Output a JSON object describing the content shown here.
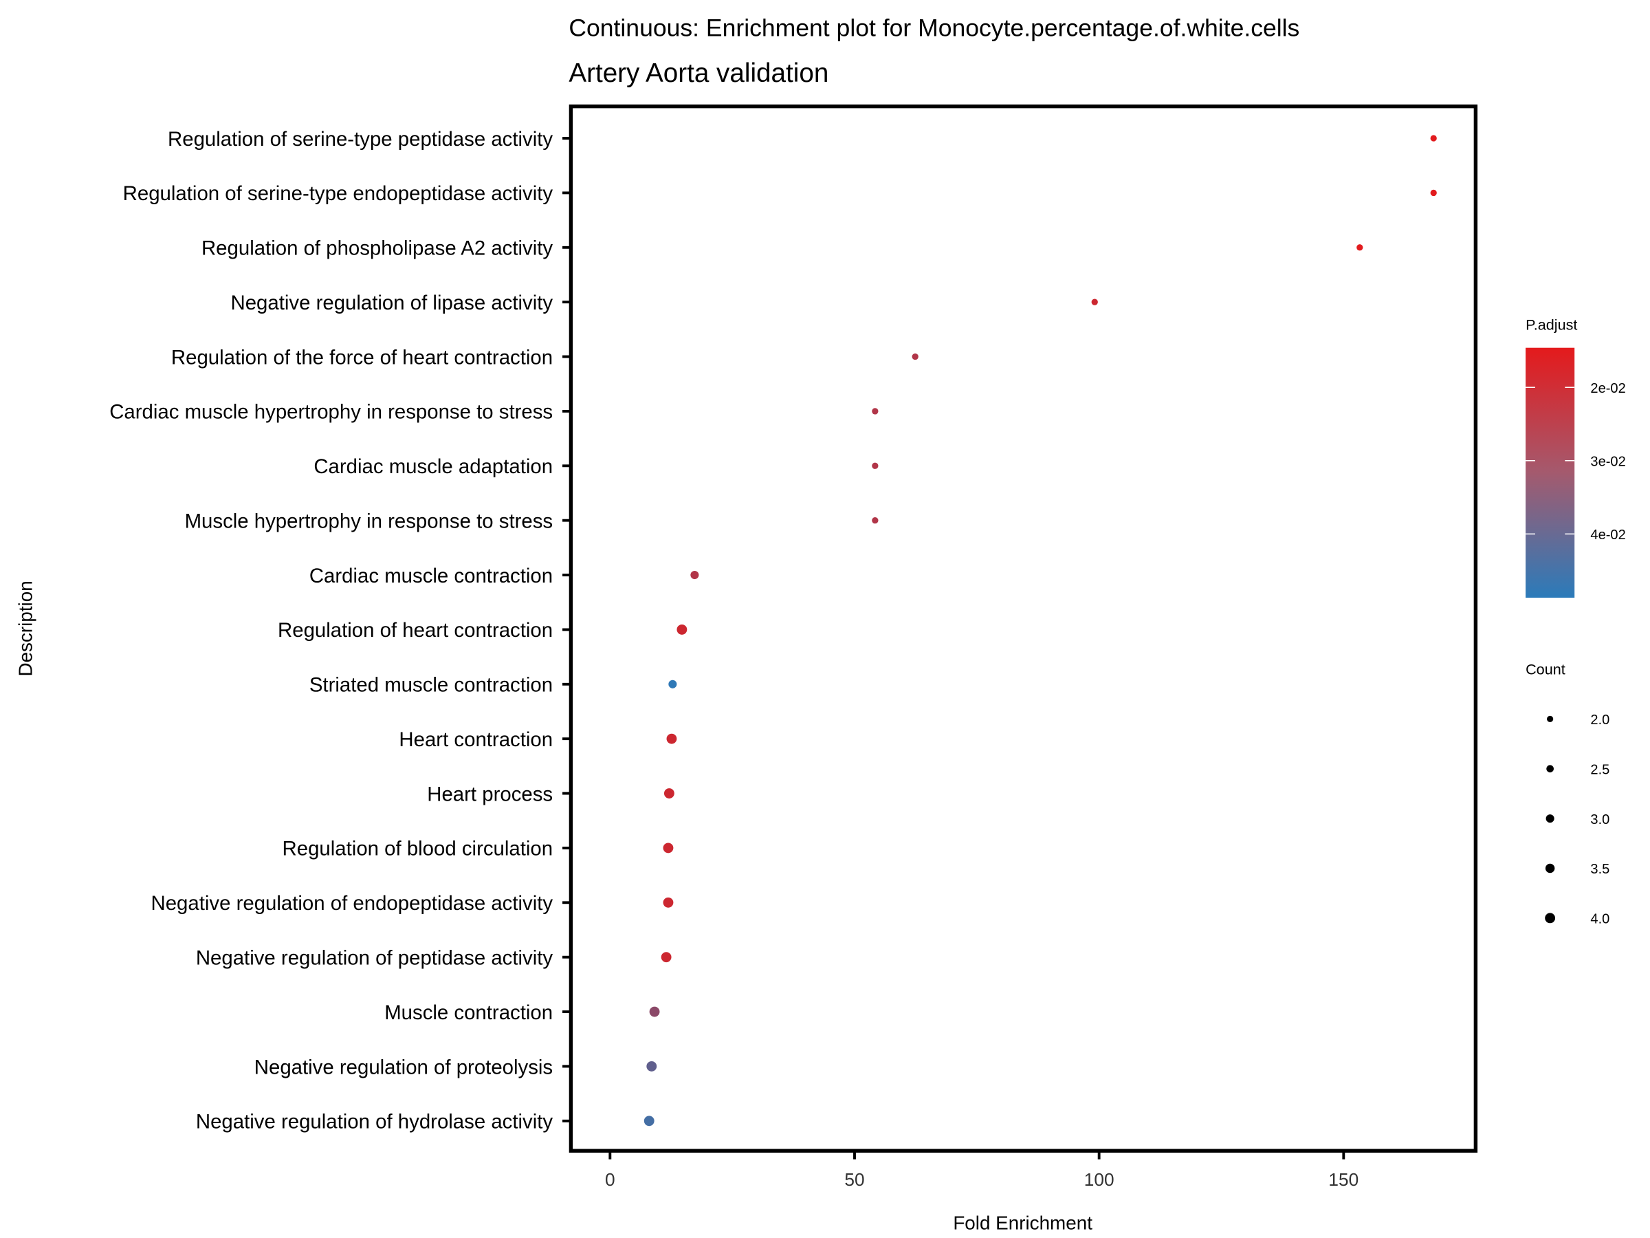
{
  "chart_data": {
    "type": "scatter",
    "title": "Continuous: Enrichment plot for Monocyte.percentage.of.white.cells",
    "subtitle": "Artery Aorta validation",
    "xlabel": "Fold Enrichment",
    "ylabel": "Description",
    "xlim": [
      -8,
      177
    ],
    "xticks": [
      0,
      50,
      100,
      150
    ],
    "grid": false,
    "categories": [
      "Regulation of serine-type peptidase activity",
      "Regulation of serine-type endopeptidase activity",
      "Regulation of phospholipase A2 activity",
      "Negative regulation of lipase activity",
      "Regulation of the force of heart contraction",
      "Cardiac muscle hypertrophy in response to stress",
      "Cardiac muscle adaptation",
      "Muscle hypertrophy in response to stress",
      "Cardiac muscle contraction",
      "Regulation of heart contraction",
      "Striated muscle contraction",
      "Heart contraction",
      "Heart process",
      "Regulation of blood circulation",
      "Negative regulation of endopeptidase activity",
      "Negative regulation of peptidase activity",
      "Muscle contraction",
      "Negative regulation of proteolysis",
      "Negative regulation of hydrolase activity"
    ],
    "fold_enrichment": [
      168.4,
      168.4,
      153.3,
      99.1,
      62.4,
      54.2,
      54.2,
      54.2,
      17.3,
      14.7,
      12.8,
      12.6,
      12.1,
      11.9,
      11.9,
      11.5,
      9.1,
      8.5,
      8.0
    ],
    "count": [
      2,
      2,
      2,
      2,
      2,
      2,
      2,
      2,
      3,
      4,
      3,
      4,
      4,
      4,
      4,
      4,
      4,
      4,
      4
    ],
    "p_adjust": [
      0.015,
      0.015,
      0.015,
      0.019,
      0.024,
      0.024,
      0.024,
      0.024,
      0.024,
      0.019,
      0.048,
      0.019,
      0.019,
      0.019,
      0.019,
      0.019,
      0.031,
      0.039,
      0.044
    ],
    "legend_color": {
      "title": "P.adjust",
      "ticks": [
        0.02,
        0.03,
        0.04
      ],
      "tick_labels": [
        "2e-02",
        "3e-02",
        "4e-02"
      ],
      "range": [
        0.0146,
        0.0487
      ],
      "low_color": "#e41a1c",
      "high_color": "#2b7bba",
      "placement": "right"
    },
    "legend_size": {
      "title": "Count",
      "values": [
        2.0,
        2.5,
        3.0,
        3.5,
        4.0
      ],
      "labels": [
        "2.0",
        "2.5",
        "3.0",
        "3.5",
        "4.0"
      ],
      "placement": "right"
    }
  }
}
